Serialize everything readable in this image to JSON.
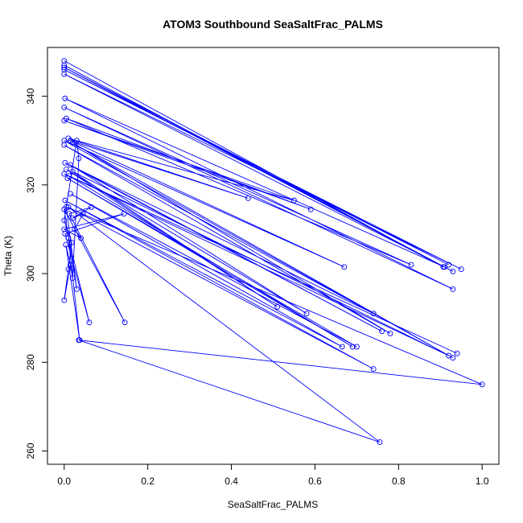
{
  "chart_data": {
    "type": "scatter",
    "title": "ATOM3 Southbound SeaSaltFrac_PALMS",
    "xlabel": "SeaSaltFrac_PALMS",
    "ylabel": "Theta (K)",
    "xlim": [
      -0.04,
      1.04
    ],
    "ylim": [
      257,
      351
    ],
    "xticks": [
      0.0,
      0.2,
      0.4,
      0.6,
      0.8,
      1.0
    ],
    "xtick_labels": [
      "0.0",
      "0.2",
      "0.4",
      "0.6",
      "0.8",
      "1.0"
    ],
    "yticks": [
      260,
      280,
      300,
      320,
      340
    ],
    "ytick_labels": [
      "260",
      "280",
      "300",
      "320",
      "340"
    ],
    "grid": false,
    "legend": "none",
    "color": "#0000ff",
    "connected": true,
    "series": [
      {
        "x": [
          0.0,
          0.907,
          0.0,
          0.93,
          0.0,
          0.92,
          0.0,
          0.95,
          0.0,
          0.91,
          0.002,
          0.93,
          0.0,
          0.83,
          0.005,
          0.59,
          0.0,
          0.55,
          0.01,
          0.44,
          0.015,
          0.67,
          0.0,
          0.93,
          0.02,
          0.78,
          0.0,
          0.74,
          0.002,
          0.76,
          0.015,
          0.58,
          0.005,
          0.51,
          0.02,
          0.92,
          0.0,
          0.94,
          0.012,
          0.69,
          0.008,
          0.7,
          0.015,
          0.665,
          0.002,
          0.74,
          0.01,
          0.755,
          0.035,
          1.0,
          0.005,
          0.03,
          0.0,
          0.145,
          0.012,
          0.065,
          0.02,
          0.045,
          0.025,
          0.04,
          0.0,
          0.143,
          0.002,
          0.06,
          0.01,
          0.037,
          0.004,
          0.015,
          0.02,
          0.035,
          0.03,
          0.0,
          0.018,
          0.01,
          0.0,
          0.015
        ],
        "y": [
          348,
          301.5,
          347,
          300.5,
          346.5,
          302,
          346,
          301,
          345,
          301.5,
          339.5,
          296.5,
          337.5,
          302,
          335,
          314.5,
          334.5,
          316.5,
          330.5,
          317,
          330,
          301.5,
          330,
          281,
          329.5,
          286.5,
          329,
          291,
          325,
          287,
          324.5,
          291,
          323.5,
          292.5,
          323,
          281.5,
          322.5,
          282,
          322,
          283.5,
          321.5,
          283.5,
          318,
          283.5,
          316.5,
          278.5,
          315,
          262,
          285,
          275,
          315,
          296.5,
          314.5,
          289,
          313.5,
          315,
          312.5,
          313.5,
          310,
          308,
          310,
          313.5,
          309,
          289,
          308,
          285,
          306.5,
          302,
          299,
          326,
          330,
          312,
          307,
          301,
          294,
          302
        ]
      }
    ]
  }
}
